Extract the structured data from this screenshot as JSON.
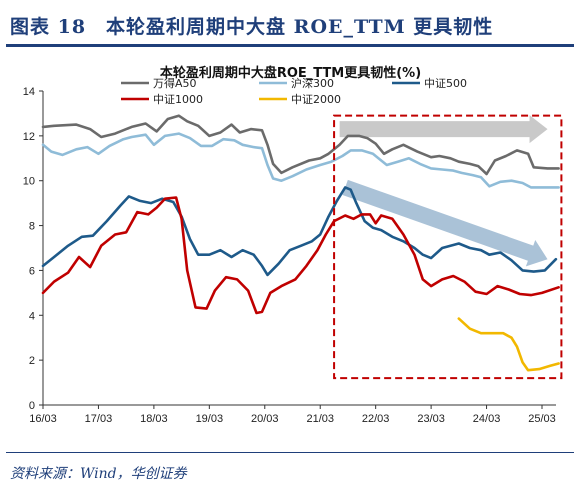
{
  "header": {
    "title": "图表 18　本轮盈利周期中大盘 ROE_TTM 更具韧性"
  },
  "source": "资料来源：Wind，华创证券",
  "chart_data": {
    "type": "line",
    "title": "本轮盈利周期中大盘ROE_TTM更具韧性(%)",
    "ylim": [
      0,
      14
    ],
    "yticks": [
      0,
      2,
      4,
      6,
      8,
      10,
      12,
      14
    ],
    "xticks": [
      "16/03",
      "17/03",
      "18/03",
      "19/03",
      "20/03",
      "21/03",
      "22/03",
      "23/03",
      "24/03",
      "25/03"
    ],
    "grid": false,
    "legend": "top",
    "series": [
      {
        "name": "万得A50",
        "color": "#6b6b6b",
        "points": [
          [
            0.0,
            12.4
          ],
          [
            0.2,
            12.45
          ],
          [
            0.6,
            12.5
          ],
          [
            0.85,
            12.3
          ],
          [
            1.05,
            11.95
          ],
          [
            1.3,
            12.1
          ],
          [
            1.6,
            12.4
          ],
          [
            1.85,
            12.55
          ],
          [
            2.05,
            12.2
          ],
          [
            2.25,
            12.75
          ],
          [
            2.45,
            12.9
          ],
          [
            2.6,
            12.65
          ],
          [
            2.8,
            12.45
          ],
          [
            3.0,
            12.0
          ],
          [
            3.2,
            12.15
          ],
          [
            3.4,
            12.5
          ],
          [
            3.55,
            12.15
          ],
          [
            3.75,
            12.3
          ],
          [
            3.95,
            12.25
          ],
          [
            4.05,
            11.6
          ],
          [
            4.15,
            10.75
          ],
          [
            4.3,
            10.35
          ],
          [
            4.5,
            10.6
          ],
          [
            4.8,
            10.9
          ],
          [
            5.0,
            11.0
          ],
          [
            5.15,
            11.2
          ],
          [
            5.35,
            11.6
          ],
          [
            5.5,
            12.0
          ],
          [
            5.7,
            12.0
          ],
          [
            5.85,
            11.9
          ],
          [
            6.0,
            11.65
          ],
          [
            6.15,
            11.2
          ],
          [
            6.3,
            11.4
          ],
          [
            6.5,
            11.6
          ],
          [
            6.75,
            11.3
          ],
          [
            7.0,
            11.05
          ],
          [
            7.15,
            11.1
          ],
          [
            7.35,
            11.0
          ],
          [
            7.5,
            10.85
          ],
          [
            7.7,
            10.75
          ],
          [
            7.85,
            10.65
          ],
          [
            8.0,
            10.3
          ],
          [
            8.15,
            10.9
          ],
          [
            8.35,
            11.1
          ],
          [
            8.55,
            11.35
          ],
          [
            8.75,
            11.2
          ],
          [
            8.85,
            10.6
          ],
          [
            9.1,
            10.55
          ],
          [
            9.3,
            10.55
          ]
        ]
      },
      {
        "name": "沪深300",
        "color": "#8fbcd8",
        "points": [
          [
            0.0,
            11.6
          ],
          [
            0.15,
            11.3
          ],
          [
            0.35,
            11.15
          ],
          [
            0.6,
            11.4
          ],
          [
            0.8,
            11.5
          ],
          [
            1.0,
            11.2
          ],
          [
            1.2,
            11.55
          ],
          [
            1.45,
            11.85
          ],
          [
            1.6,
            11.95
          ],
          [
            1.85,
            12.05
          ],
          [
            2.0,
            11.6
          ],
          [
            2.2,
            12.0
          ],
          [
            2.45,
            12.1
          ],
          [
            2.65,
            11.9
          ],
          [
            2.85,
            11.55
          ],
          [
            3.05,
            11.55
          ],
          [
            3.25,
            11.85
          ],
          [
            3.45,
            11.8
          ],
          [
            3.6,
            11.6
          ],
          [
            3.8,
            11.5
          ],
          [
            3.95,
            11.45
          ],
          [
            4.05,
            10.7
          ],
          [
            4.15,
            10.1
          ],
          [
            4.3,
            10.0
          ],
          [
            4.5,
            10.2
          ],
          [
            4.75,
            10.5
          ],
          [
            5.0,
            10.7
          ],
          [
            5.2,
            10.85
          ],
          [
            5.4,
            11.1
          ],
          [
            5.55,
            11.35
          ],
          [
            5.75,
            11.35
          ],
          [
            5.95,
            11.2
          ],
          [
            6.1,
            10.9
          ],
          [
            6.2,
            10.7
          ],
          [
            6.4,
            10.85
          ],
          [
            6.6,
            11.0
          ],
          [
            6.8,
            10.75
          ],
          [
            7.0,
            10.55
          ],
          [
            7.2,
            10.5
          ],
          [
            7.4,
            10.45
          ],
          [
            7.55,
            10.35
          ],
          [
            7.75,
            10.25
          ],
          [
            7.9,
            10.15
          ],
          [
            8.05,
            9.75
          ],
          [
            8.25,
            9.95
          ],
          [
            8.45,
            10.0
          ],
          [
            8.65,
            9.9
          ],
          [
            8.8,
            9.7
          ],
          [
            9.0,
            9.7
          ],
          [
            9.3,
            9.7
          ]
        ]
      },
      {
        "name": "中证500",
        "color": "#1e5a8a",
        "points": [
          [
            0.0,
            6.2
          ],
          [
            0.2,
            6.6
          ],
          [
            0.45,
            7.1
          ],
          [
            0.7,
            7.5
          ],
          [
            0.9,
            7.55
          ],
          [
            1.15,
            8.2
          ],
          [
            1.4,
            8.9
          ],
          [
            1.55,
            9.3
          ],
          [
            1.75,
            9.1
          ],
          [
            1.95,
            9.0
          ],
          [
            2.15,
            9.2
          ],
          [
            2.35,
            9.05
          ],
          [
            2.5,
            8.4
          ],
          [
            2.65,
            7.4
          ],
          [
            2.8,
            6.7
          ],
          [
            3.0,
            6.7
          ],
          [
            3.2,
            6.9
          ],
          [
            3.4,
            6.6
          ],
          [
            3.6,
            6.9
          ],
          [
            3.8,
            6.7
          ],
          [
            3.95,
            6.2
          ],
          [
            4.05,
            5.8
          ],
          [
            4.25,
            6.3
          ],
          [
            4.45,
            6.9
          ],
          [
            4.65,
            7.1
          ],
          [
            4.85,
            7.3
          ],
          [
            5.0,
            7.6
          ],
          [
            5.15,
            8.4
          ],
          [
            5.3,
            9.1
          ],
          [
            5.45,
            9.7
          ],
          [
            5.55,
            9.6
          ],
          [
            5.65,
            9.0
          ],
          [
            5.8,
            8.2
          ],
          [
            5.95,
            7.9
          ],
          [
            6.1,
            7.8
          ],
          [
            6.3,
            7.5
          ],
          [
            6.5,
            7.3
          ],
          [
            6.7,
            7.0
          ],
          [
            6.85,
            6.7
          ],
          [
            7.0,
            6.55
          ],
          [
            7.2,
            7.0
          ],
          [
            7.35,
            7.1
          ],
          [
            7.5,
            7.2
          ],
          [
            7.7,
            7.0
          ],
          [
            7.9,
            6.9
          ],
          [
            8.05,
            6.7
          ],
          [
            8.25,
            6.8
          ],
          [
            8.45,
            6.45
          ],
          [
            8.65,
            6.0
          ],
          [
            8.85,
            5.95
          ],
          [
            9.05,
            6.0
          ],
          [
            9.25,
            6.5
          ]
        ]
      },
      {
        "name": "中证1000",
        "color": "#c00000",
        "points": [
          [
            0.0,
            5.0
          ],
          [
            0.2,
            5.5
          ],
          [
            0.45,
            5.9
          ],
          [
            0.65,
            6.6
          ],
          [
            0.85,
            6.15
          ],
          [
            1.05,
            7.1
          ],
          [
            1.3,
            7.6
          ],
          [
            1.5,
            7.7
          ],
          [
            1.7,
            8.6
          ],
          [
            1.9,
            8.5
          ],
          [
            2.05,
            8.8
          ],
          [
            2.2,
            9.2
          ],
          [
            2.4,
            9.25
          ],
          [
            2.5,
            8.3
          ],
          [
            2.6,
            6.0
          ],
          [
            2.75,
            4.35
          ],
          [
            2.95,
            4.3
          ],
          [
            3.1,
            5.1
          ],
          [
            3.3,
            5.7
          ],
          [
            3.5,
            5.6
          ],
          [
            3.7,
            5.1
          ],
          [
            3.85,
            4.1
          ],
          [
            3.95,
            4.15
          ],
          [
            4.1,
            5.0
          ],
          [
            4.3,
            5.3
          ],
          [
            4.55,
            5.6
          ],
          [
            4.75,
            6.2
          ],
          [
            4.95,
            6.9
          ],
          [
            5.1,
            7.6
          ],
          [
            5.25,
            8.2
          ],
          [
            5.45,
            8.45
          ],
          [
            5.6,
            8.3
          ],
          [
            5.75,
            8.5
          ],
          [
            5.9,
            8.5
          ],
          [
            6.0,
            8.1
          ],
          [
            6.1,
            8.45
          ],
          [
            6.3,
            8.3
          ],
          [
            6.5,
            7.6
          ],
          [
            6.7,
            6.7
          ],
          [
            6.85,
            5.6
          ],
          [
            7.0,
            5.3
          ],
          [
            7.2,
            5.6
          ],
          [
            7.4,
            5.75
          ],
          [
            7.6,
            5.5
          ],
          [
            7.8,
            5.05
          ],
          [
            8.0,
            4.95
          ],
          [
            8.2,
            5.3
          ],
          [
            8.4,
            5.15
          ],
          [
            8.6,
            4.95
          ],
          [
            8.8,
            4.9
          ],
          [
            9.0,
            5.0
          ],
          [
            9.3,
            5.25
          ]
        ]
      },
      {
        "name": "中证2000",
        "color": "#f2b800",
        "points": [
          [
            7.5,
            3.85
          ],
          [
            7.7,
            3.4
          ],
          [
            7.9,
            3.2
          ],
          [
            8.1,
            3.2
          ],
          [
            8.3,
            3.2
          ],
          [
            8.45,
            3.0
          ],
          [
            8.55,
            2.6
          ],
          [
            8.65,
            1.9
          ],
          [
            8.75,
            1.55
          ],
          [
            8.95,
            1.6
          ],
          [
            9.15,
            1.75
          ],
          [
            9.3,
            1.85
          ]
        ]
      }
    ],
    "annotations": [
      {
        "type": "dashed-rect",
        "color": "#c00000",
        "x0": 5.25,
        "x1": 9.35,
        "y0": 12.9,
        "y1": 1.2
      },
      {
        "type": "arrow",
        "color": "#bfbfbf",
        "from": [
          5.35,
          12.3
        ],
        "to": [
          9.1,
          12.3
        ]
      },
      {
        "type": "arrow",
        "color": "#9bb7d0",
        "from": [
          5.45,
          9.7
        ],
        "to": [
          9.1,
          6.5
        ]
      }
    ]
  }
}
